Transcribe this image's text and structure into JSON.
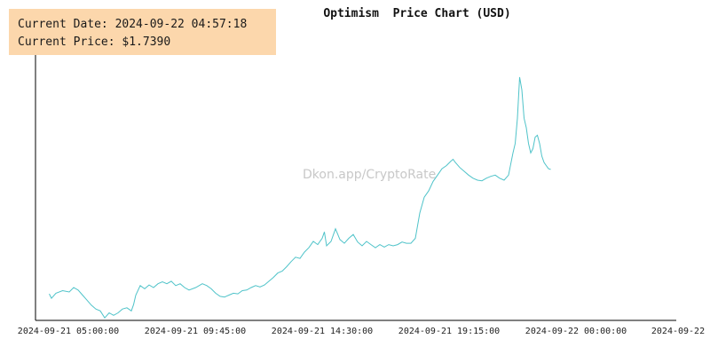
{
  "info": {
    "date_label": "Current Date:",
    "date_value": "2024-09-22 04:57:18",
    "price_label": "Current Price:",
    "price_value": "$1.7390"
  },
  "watermark": "Dkon.app/CryptoRate",
  "colors": {
    "line": "#4fc3c9",
    "axis": "#000000",
    "info_bg": "#fcd7ac"
  },
  "chart_data": {
    "type": "line",
    "title": "Optimism  Price Chart (USD)",
    "xlabel": "",
    "ylabel": "",
    "grid": false,
    "x_ticks": [
      "2024-09-21 05:00:00",
      "2024-09-21 09:45:00",
      "2024-09-21 14:30:00",
      "2024-09-21 19:15:00",
      "2024-09-22 00:00:00",
      "2024-09-22"
    ],
    "y_range_estimated": [
      1.4,
      1.82
    ],
    "series": [
      {
        "name": "",
        "x_unit": "minutes since 2024-09-21 05:00",
        "points": [
          [
            -45,
            1.442
          ],
          [
            -40,
            1.435
          ],
          [
            -30,
            1.443
          ],
          [
            -15,
            1.447
          ],
          [
            0,
            1.445
          ],
          [
            10,
            1.452
          ],
          [
            20,
            1.448
          ],
          [
            30,
            1.44
          ],
          [
            40,
            1.432
          ],
          [
            50,
            1.424
          ],
          [
            60,
            1.418
          ],
          [
            70,
            1.415
          ],
          [
            80,
            1.404
          ],
          [
            90,
            1.412
          ],
          [
            100,
            1.408
          ],
          [
            110,
            1.412
          ],
          [
            120,
            1.418
          ],
          [
            130,
            1.42
          ],
          [
            140,
            1.415
          ],
          [
            145,
            1.425
          ],
          [
            150,
            1.44
          ],
          [
            160,
            1.455
          ],
          [
            170,
            1.45
          ],
          [
            180,
            1.456
          ],
          [
            190,
            1.452
          ],
          [
            200,
            1.458
          ],
          [
            210,
            1.461
          ],
          [
            220,
            1.458
          ],
          [
            230,
            1.462
          ],
          [
            240,
            1.455
          ],
          [
            250,
            1.458
          ],
          [
            260,
            1.452
          ],
          [
            270,
            1.448
          ],
          [
            285,
            1.452
          ],
          [
            300,
            1.458
          ],
          [
            310,
            1.455
          ],
          [
            320,
            1.45
          ],
          [
            330,
            1.443
          ],
          [
            340,
            1.438
          ],
          [
            350,
            1.437
          ],
          [
            360,
            1.44
          ],
          [
            370,
            1.443
          ],
          [
            380,
            1.442
          ],
          [
            390,
            1.447
          ],
          [
            400,
            1.448
          ],
          [
            410,
            1.452
          ],
          [
            420,
            1.455
          ],
          [
            430,
            1.453
          ],
          [
            440,
            1.456
          ],
          [
            450,
            1.462
          ],
          [
            460,
            1.468
          ],
          [
            470,
            1.475
          ],
          [
            480,
            1.478
          ],
          [
            490,
            1.485
          ],
          [
            500,
            1.493
          ],
          [
            510,
            1.5
          ],
          [
            520,
            1.498
          ],
          [
            530,
            1.508
          ],
          [
            540,
            1.515
          ],
          [
            550,
            1.525
          ],
          [
            560,
            1.52
          ],
          [
            570,
            1.53
          ],
          [
            575,
            1.54
          ],
          [
            580,
            1.518
          ],
          [
            590,
            1.525
          ],
          [
            600,
            1.545
          ],
          [
            610,
            1.528
          ],
          [
            620,
            1.522
          ],
          [
            630,
            1.53
          ],
          [
            640,
            1.536
          ],
          [
            650,
            1.524
          ],
          [
            660,
            1.518
          ],
          [
            670,
            1.525
          ],
          [
            680,
            1.52
          ],
          [
            690,
            1.515
          ],
          [
            700,
            1.52
          ],
          [
            710,
            1.516
          ],
          [
            720,
            1.52
          ],
          [
            730,
            1.518
          ],
          [
            740,
            1.52
          ],
          [
            750,
            1.524
          ],
          [
            760,
            1.522
          ],
          [
            770,
            1.522
          ],
          [
            780,
            1.53
          ],
          [
            790,
            1.57
          ],
          [
            800,
            1.595
          ],
          [
            810,
            1.605
          ],
          [
            820,
            1.62
          ],
          [
            830,
            1.63
          ],
          [
            840,
            1.64
          ],
          [
            850,
            1.645
          ],
          [
            860,
            1.652
          ],
          [
            865,
            1.655
          ],
          [
            870,
            1.65
          ],
          [
            880,
            1.642
          ],
          [
            890,
            1.636
          ],
          [
            900,
            1.63
          ],
          [
            910,
            1.625
          ],
          [
            920,
            1.622
          ],
          [
            930,
            1.621
          ],
          [
            940,
            1.625
          ],
          [
            950,
            1.628
          ],
          [
            960,
            1.63
          ],
          [
            970,
            1.625
          ],
          [
            980,
            1.622
          ],
          [
            990,
            1.63
          ],
          [
            1000,
            1.665
          ],
          [
            1005,
            1.68
          ],
          [
            1010,
            1.72
          ],
          [
            1015,
            1.785
          ],
          [
            1020,
            1.765
          ],
          [
            1025,
            1.72
          ],
          [
            1030,
            1.705
          ],
          [
            1035,
            1.68
          ],
          [
            1040,
            1.665
          ],
          [
            1045,
            1.672
          ],
          [
            1050,
            1.69
          ],
          [
            1055,
            1.693
          ],
          [
            1060,
            1.68
          ],
          [
            1065,
            1.66
          ],
          [
            1070,
            1.65
          ],
          [
            1075,
            1.645
          ],
          [
            1080,
            1.64
          ],
          [
            1085,
            1.639
          ]
        ]
      }
    ]
  }
}
